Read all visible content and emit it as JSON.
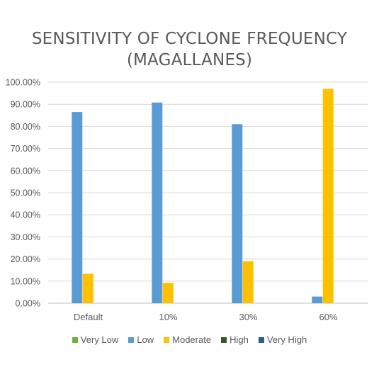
{
  "chart_data": {
    "type": "bar",
    "title_lines": [
      "SENSITIVITY OF CYCLONE FREQUENCY",
      "(MAGALLANES)"
    ],
    "categories": [
      "Default",
      "10%",
      "30%",
      "60%"
    ],
    "series": [
      {
        "name": "Very Low",
        "color": "#70ad47",
        "values": [
          0,
          0,
          0,
          0
        ]
      },
      {
        "name": "Low",
        "color": "#5b9bd5",
        "values": [
          86.5,
          90.8,
          81.0,
          3.0
        ]
      },
      {
        "name": "Moderate",
        "color": "#ffc000",
        "values": [
          13.3,
          9.2,
          19.0,
          97.0
        ]
      },
      {
        "name": "High",
        "color": "#375623",
        "values": [
          0,
          0,
          0,
          0
        ]
      },
      {
        "name": "Very High",
        "color": "#2e5c8a",
        "values": [
          0,
          0,
          0,
          0
        ]
      }
    ],
    "ylim": [
      0,
      100
    ],
    "ytick_values": [
      0,
      10,
      20,
      30,
      40,
      50,
      60,
      70,
      80,
      90,
      100
    ],
    "ytick_labels": [
      "0.00%",
      "10.00%",
      "20.00%",
      "30.00%",
      "40.00%",
      "50.00%",
      "60.00%",
      "70.00%",
      "80.00%",
      "90.00%",
      "100.00%"
    ],
    "grid": true,
    "legend_position": "bottom"
  }
}
